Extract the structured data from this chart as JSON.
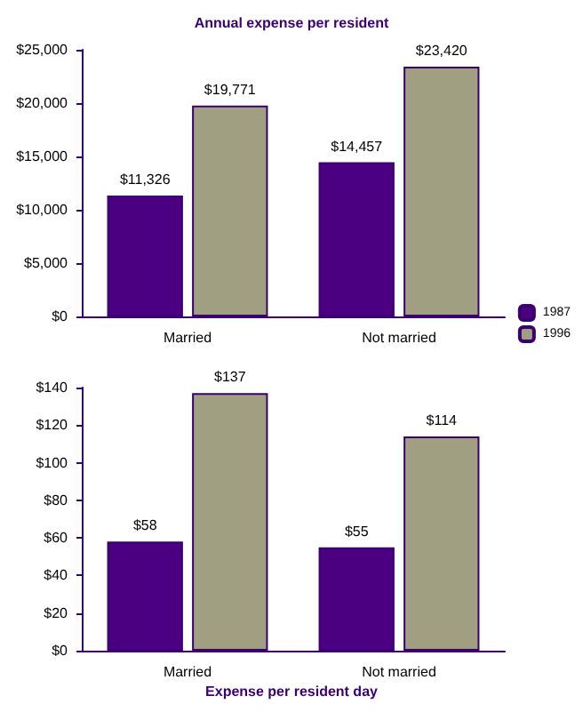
{
  "chart_data": [
    {
      "type": "bar",
      "title": "Annual expense per resident",
      "categories": [
        "Married",
        "Not married"
      ],
      "series": [
        {
          "name": "1987",
          "color": "#4b0082",
          "values": [
            11326,
            14457
          ],
          "value_labels": [
            "$11,326",
            "$14,457"
          ]
        },
        {
          "name": "1996",
          "color": "#a19f82",
          "values": [
            19771,
            23420
          ],
          "value_labels": [
            "$19,771",
            "$23,420"
          ]
        }
      ],
      "ylim": [
        0,
        25000
      ],
      "yticks": [
        {
          "value": 0,
          "label": "$0"
        },
        {
          "value": 5000,
          "label": "$5,000"
        },
        {
          "value": 10000,
          "label": "$10,000"
        },
        {
          "value": 15000,
          "label": "$15,000"
        },
        {
          "value": 20000,
          "label": "$20,000"
        },
        {
          "value": 25000,
          "label": "$25,000"
        }
      ],
      "grid": false,
      "legend": "right"
    },
    {
      "type": "bar",
      "title": "Expense per resident day",
      "categories": [
        "Married",
        "Not married"
      ],
      "series": [
        {
          "name": "1987",
          "color": "#4b0082",
          "values": [
            58,
            55
          ],
          "value_labels": [
            "$58",
            "$55"
          ]
        },
        {
          "name": "1996",
          "color": "#a19f82",
          "values": [
            137,
            114
          ],
          "value_labels": [
            "$137",
            "$114"
          ]
        }
      ],
      "ylim": [
        0,
        140
      ],
      "yticks": [
        {
          "value": 0,
          "label": "$0"
        },
        {
          "value": 20,
          "label": "$20"
        },
        {
          "value": 40,
          "label": "$40"
        },
        {
          "value": 60,
          "label": "$60"
        },
        {
          "value": 80,
          "label": "$80"
        },
        {
          "value": 100,
          "label": "$100"
        },
        {
          "value": 120,
          "label": "$120"
        },
        {
          "value": 140,
          "label": "$140"
        }
      ],
      "grid": false,
      "legend": false
    }
  ]
}
